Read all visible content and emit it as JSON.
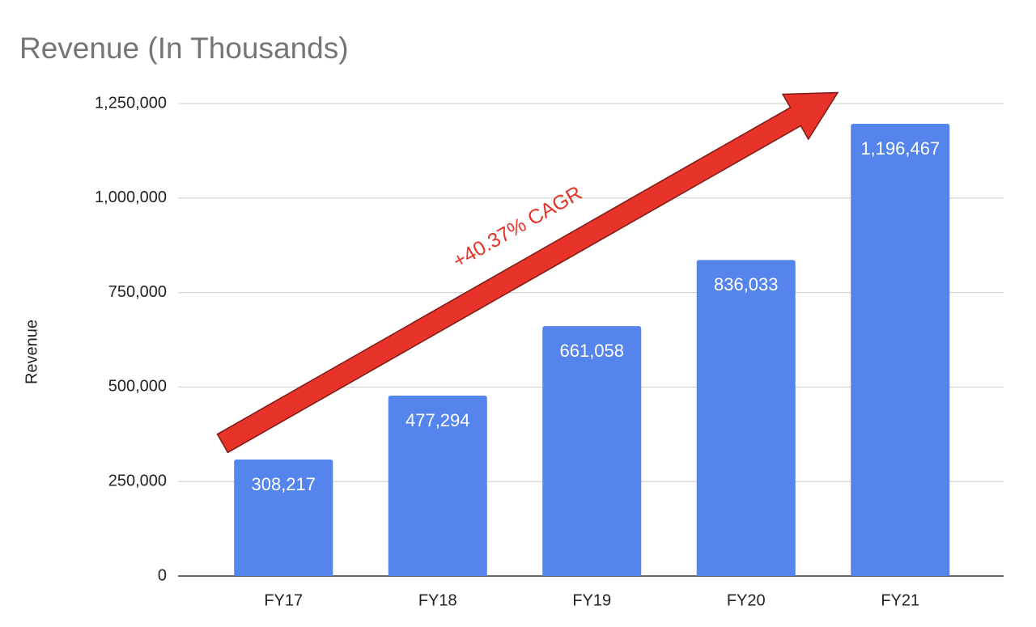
{
  "chart_data": {
    "type": "bar",
    "title": "Revenue (In Thousands)",
    "y_label": "Revenue",
    "categories": [
      "FY17",
      "FY18",
      "FY19",
      "FY20",
      "FY21"
    ],
    "values": [
      308217,
      477294,
      661058,
      836033,
      1196467
    ],
    "value_labels": [
      "308,217",
      "477,294",
      "661,058",
      "836,033",
      "1,196,467"
    ],
    "color": "#5484ec",
    "ylim": [
      0,
      1250000
    ],
    "yticks": [
      0,
      {
        "value": 250000,
        "label": "250,000"
      },
      {
        "value": 500000,
        "label": "500,000"
      },
      {
        "value": 750000,
        "label": "750,000"
      },
      {
        "value": 1000000,
        "label": "1,000,000"
      },
      {
        "value": 1250000,
        "label": "1,250,000"
      }
    ],
    "grid": true,
    "annotation": "+40.37% CAGR"
  }
}
